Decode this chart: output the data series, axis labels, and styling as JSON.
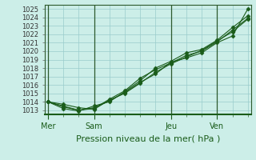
{
  "background_color": "#cceee8",
  "plot_background": "#cceee8",
  "grid_color": "#99cccc",
  "line_color": "#1a5c1a",
  "marker_color": "#1a5c1a",
  "xlabel": "Pression niveau de la mer( hPa )",
  "xlabel_fontsize": 8,
  "ytick_fontsize": 6,
  "xtick_fontsize": 7,
  "ylim": [
    1012.5,
    1025.5
  ],
  "yticks": [
    1013,
    1014,
    1015,
    1016,
    1017,
    1018,
    1019,
    1020,
    1021,
    1022,
    1023,
    1024,
    1025
  ],
  "xtick_labels": [
    "Mer",
    "Sam",
    "Jeu",
    "Ven"
  ],
  "xtick_positions": [
    0,
    3,
    8,
    11
  ],
  "vline_positions": [
    0,
    3,
    8,
    11
  ],
  "num_points": 14,
  "xlim": [
    -0.2,
    13.2
  ],
  "series": [
    [
      1014.0,
      1013.7,
      1013.3,
      1013.1,
      1014.2,
      1015.0,
      1016.2,
      1017.5,
      1018.5,
      1019.3,
      1020.1,
      1021.2,
      1022.3,
      1023.8
    ],
    [
      1014.0,
      1013.2,
      1012.9,
      1013.5,
      1014.0,
      1015.2,
      1016.5,
      1018.0,
      1018.8,
      1019.8,
      1020.2,
      1021.3,
      1022.8,
      1024.2
    ],
    [
      1014.0,
      1013.5,
      1013.0,
      1013.2,
      1014.3,
      1015.3,
      1016.8,
      1017.8,
      1018.6,
      1019.5,
      1020.0,
      1021.1,
      1022.5,
      1023.9
    ],
    [
      1014.0,
      1013.4,
      1013.0,
      1013.3,
      1014.1,
      1015.1,
      1016.3,
      1017.3,
      1018.7,
      1019.2,
      1019.8,
      1021.0,
      1021.8,
      1025.0
    ]
  ]
}
